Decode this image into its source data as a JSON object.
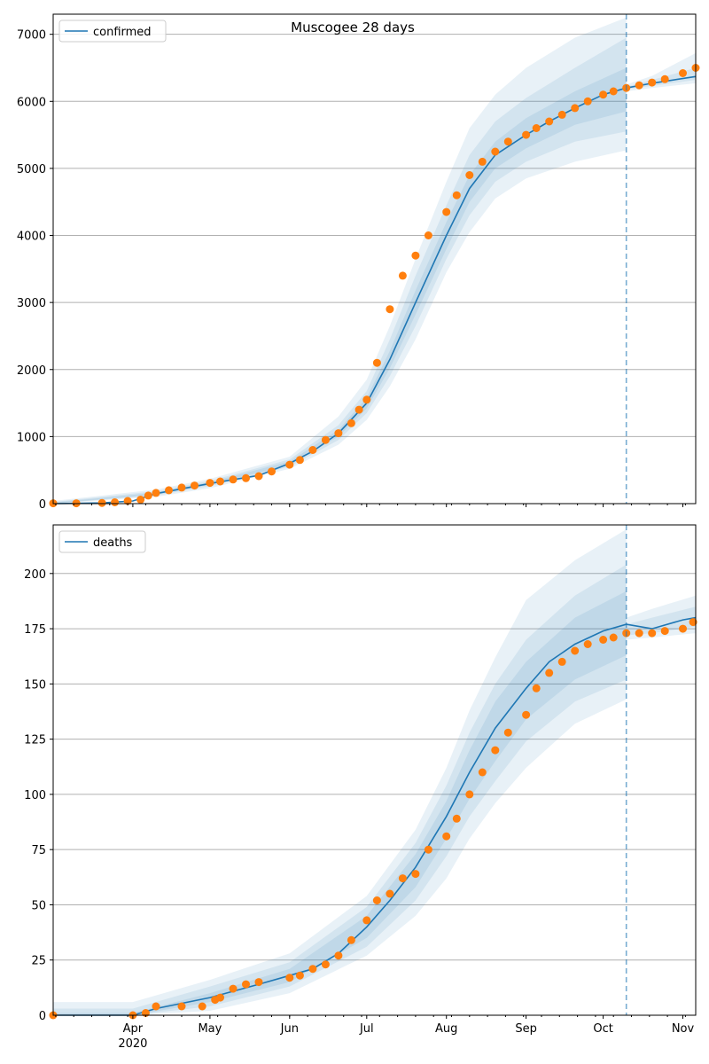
{
  "title": "Muscogee 28 days",
  "colors": {
    "model_line": "#1f77b4",
    "observed_points": "#ff7f0e",
    "band": "#1f77b4",
    "grid": "#b0b0b0",
    "forecast_marker": "#1f77b4"
  },
  "x_axis": {
    "start": "2020-03-01",
    "end": "2020-11-06",
    "month_ticks": [
      {
        "date": "2020-04-01",
        "label": "Apr",
        "sublabel": "2020"
      },
      {
        "date": "2020-05-01",
        "label": "May",
        "sublabel": ""
      },
      {
        "date": "2020-06-01",
        "label": "Jun",
        "sublabel": ""
      },
      {
        "date": "2020-07-01",
        "label": "Jul",
        "sublabel": ""
      },
      {
        "date": "2020-08-01",
        "label": "Aug",
        "sublabel": ""
      },
      {
        "date": "2020-09-01",
        "label": "Sep",
        "sublabel": ""
      },
      {
        "date": "2020-10-01",
        "label": "Oct",
        "sublabel": ""
      },
      {
        "date": "2020-11-01",
        "label": "Nov",
        "sublabel": ""
      }
    ],
    "forecast_start": "2020-10-10"
  },
  "chart_data": [
    {
      "type": "line",
      "title": "Muscogee 28 days",
      "legend": "confirmed",
      "legend_position": "top-left",
      "grid": "horizontal",
      "ylim": [
        0,
        7300
      ],
      "yticks": [
        0,
        1000,
        2000,
        3000,
        4000,
        5000,
        6000,
        7000
      ],
      "model_curve": {
        "x": [
          "2020-03-01",
          "2020-03-20",
          "2020-04-01",
          "2020-04-10",
          "2020-05-01",
          "2020-05-20",
          "2020-06-01",
          "2020-06-10",
          "2020-06-20",
          "2020-07-01",
          "2020-07-10",
          "2020-07-20",
          "2020-08-01",
          "2020-08-10",
          "2020-08-20",
          "2020-09-01",
          "2020-09-10",
          "2020-09-20",
          "2020-10-01",
          "2020-10-10",
          "2020-10-20",
          "2020-11-06"
        ],
        "y": [
          0,
          10,
          40,
          150,
          300,
          420,
          600,
          780,
          1050,
          1500,
          2150,
          3000,
          4000,
          4700,
          5200,
          5500,
          5700,
          5900,
          6100,
          6200,
          6270,
          6370
        ]
      },
      "bands": [
        {
          "x": [
            "2020-03-01",
            "2020-04-10",
            "2020-05-01",
            "2020-06-01",
            "2020-06-20",
            "2020-07-01",
            "2020-07-10",
            "2020-07-20",
            "2020-08-01",
            "2020-08-10",
            "2020-08-20",
            "2020-09-01",
            "2020-09-20",
            "2020-10-10"
          ],
          "lower": [
            0,
            100,
            230,
            520,
            880,
            1250,
            1750,
            2450,
            3450,
            4050,
            4550,
            4850,
            5100,
            5270
          ],
          "upper": [
            40,
            210,
            370,
            700,
            1300,
            1850,
            2650,
            3650,
            4800,
            5600,
            6100,
            6500,
            6950,
            7250
          ]
        },
        {
          "x": [
            "2020-03-01",
            "2020-04-10",
            "2020-05-01",
            "2020-06-01",
            "2020-06-20",
            "2020-07-01",
            "2020-07-10",
            "2020-07-20",
            "2020-08-01",
            "2020-08-10",
            "2020-08-20",
            "2020-09-01",
            "2020-09-20",
            "2020-10-10"
          ],
          "lower": [
            0,
            120,
            260,
            550,
            950,
            1350,
            1900,
            2650,
            3650,
            4300,
            4800,
            5100,
            5400,
            5550
          ],
          "upper": [
            25,
            185,
            340,
            660,
            1170,
            1680,
            2450,
            3400,
            4450,
            5200,
            5700,
            6050,
            6500,
            6950
          ]
        },
        {
          "x": [
            "2020-03-01",
            "2020-04-10",
            "2020-05-01",
            "2020-06-01",
            "2020-06-20",
            "2020-07-01",
            "2020-07-10",
            "2020-07-20",
            "2020-08-01",
            "2020-08-10",
            "2020-08-20",
            "2020-09-01",
            "2020-09-20",
            "2020-10-10"
          ],
          "lower": [
            0,
            135,
            280,
            575,
            1000,
            1420,
            2020,
            2820,
            3800,
            4500,
            5000,
            5300,
            5650,
            5850
          ],
          "upper": [
            15,
            165,
            320,
            630,
            1100,
            1580,
            2280,
            3180,
            4200,
            4900,
            5400,
            5750,
            6150,
            6500
          ]
        },
        {
          "x": [
            "2020-10-10",
            "2020-10-20",
            "2020-11-06"
          ],
          "lower": [
            6150,
            6200,
            6270
          ],
          "upper": [
            6250,
            6380,
            6720
          ]
        },
        {
          "x": [
            "2020-10-10",
            "2020-10-20",
            "2020-11-06"
          ],
          "lower": [
            6180,
            6230,
            6320
          ],
          "upper": [
            6220,
            6320,
            6500
          ]
        }
      ],
      "observed": {
        "x": [
          "2020-03-01",
          "2020-03-10",
          "2020-03-20",
          "2020-03-25",
          "2020-03-30",
          "2020-04-04",
          "2020-04-07",
          "2020-04-10",
          "2020-04-15",
          "2020-04-20",
          "2020-04-25",
          "2020-05-01",
          "2020-05-05",
          "2020-05-10",
          "2020-05-15",
          "2020-05-20",
          "2020-05-25",
          "2020-06-01",
          "2020-06-05",
          "2020-06-10",
          "2020-06-15",
          "2020-06-20",
          "2020-06-25",
          "2020-06-28",
          "2020-07-01",
          "2020-07-05",
          "2020-07-10",
          "2020-07-15",
          "2020-07-20",
          "2020-07-25",
          "2020-08-01",
          "2020-08-05",
          "2020-08-10",
          "2020-08-15",
          "2020-08-20",
          "2020-08-25",
          "2020-09-01",
          "2020-09-05",
          "2020-09-10",
          "2020-09-15",
          "2020-09-20",
          "2020-09-25",
          "2020-10-01",
          "2020-10-05",
          "2020-10-10",
          "2020-10-15",
          "2020-10-20",
          "2020-10-25",
          "2020-11-01",
          "2020-11-06"
        ],
        "y": [
          5,
          5,
          10,
          20,
          40,
          60,
          120,
          160,
          200,
          240,
          270,
          310,
          330,
          360,
          380,
          410,
          480,
          580,
          650,
          800,
          950,
          1050,
          1200,
          1400,
          1550,
          2100,
          2900,
          3400,
          3700,
          4000,
          4350,
          4600,
          4900,
          5100,
          5250,
          5400,
          5500,
          5600,
          5700,
          5800,
          5900,
          6000,
          6100,
          6150,
          6200,
          6240,
          6280,
          6330,
          6420,
          6500
        ]
      }
    },
    {
      "type": "line",
      "legend": "deaths",
      "legend_position": "top-left",
      "grid": "horizontal",
      "ylim": [
        0,
        222
      ],
      "yticks": [
        0,
        25,
        50,
        75,
        100,
        125,
        150,
        175,
        200
      ],
      "model_curve": {
        "x": [
          "2020-03-01",
          "2020-04-01",
          "2020-04-10",
          "2020-05-01",
          "2020-05-20",
          "2020-06-01",
          "2020-06-10",
          "2020-06-20",
          "2020-07-01",
          "2020-07-10",
          "2020-07-20",
          "2020-08-01",
          "2020-08-10",
          "2020-08-20",
          "2020-09-01",
          "2020-09-10",
          "2020-09-20",
          "2020-10-01",
          "2020-10-10",
          "2020-10-20",
          "2020-11-01",
          "2020-11-06"
        ],
        "y": [
          0,
          0,
          3,
          8,
          14,
          18,
          21,
          28,
          40,
          52,
          67,
          90,
          110,
          130,
          148,
          160,
          168,
          174,
          177,
          175,
          179,
          180
        ]
      },
      "bands": [
        {
          "x": [
            "2020-03-01",
            "2020-04-01",
            "2020-05-01",
            "2020-06-01",
            "2020-07-01",
            "2020-07-20",
            "2020-08-01",
            "2020-08-10",
            "2020-08-20",
            "2020-09-01",
            "2020-09-20",
            "2020-10-10"
          ],
          "lower": [
            0,
            0,
            2,
            10,
            27,
            45,
            62,
            80,
            96,
            112,
            132,
            143
          ],
          "upper": [
            6,
            6,
            16,
            28,
            54,
            84,
            112,
            138,
            162,
            188,
            206,
            220
          ]
        },
        {
          "x": [
            "2020-03-01",
            "2020-04-01",
            "2020-05-01",
            "2020-06-01",
            "2020-07-01",
            "2020-07-20",
            "2020-08-01",
            "2020-08-10",
            "2020-08-20",
            "2020-09-01",
            "2020-09-20",
            "2020-10-10"
          ],
          "lower": [
            0,
            0,
            4,
            13,
            31,
            52,
            72,
            90,
            106,
            124,
            142,
            152
          ],
          "upper": [
            3,
            3,
            13,
            24,
            49,
            78,
            104,
            128,
            150,
            170,
            190,
            204
          ]
        },
        {
          "x": [
            "2020-03-01",
            "2020-04-01",
            "2020-05-01",
            "2020-06-01",
            "2020-07-01",
            "2020-07-20",
            "2020-08-01",
            "2020-08-10",
            "2020-08-20",
            "2020-09-01",
            "2020-09-20",
            "2020-10-10"
          ],
          "lower": [
            0,
            0,
            6,
            15,
            35,
            58,
            80,
            98,
            115,
            134,
            152,
            163
          ],
          "upper": [
            1,
            1,
            10,
            21,
            45,
            73,
            97,
            120,
            142,
            160,
            180,
            192
          ]
        },
        {
          "x": [
            "2020-10-10",
            "2020-10-20",
            "2020-11-06"
          ],
          "lower": [
            170,
            171,
            173
          ],
          "upper": [
            180,
            184,
            190
          ]
        },
        {
          "x": [
            "2020-10-10",
            "2020-10-20",
            "2020-11-06"
          ],
          "lower": [
            172,
            173,
            176
          ],
          "upper": [
            177,
            180,
            185
          ]
        }
      ],
      "observed": {
        "x": [
          "2020-03-01",
          "2020-04-01",
          "2020-04-06",
          "2020-04-10",
          "2020-04-20",
          "2020-04-28",
          "2020-05-03",
          "2020-05-05",
          "2020-05-10",
          "2020-05-15",
          "2020-05-20",
          "2020-06-01",
          "2020-06-05",
          "2020-06-10",
          "2020-06-15",
          "2020-06-20",
          "2020-06-25",
          "2020-07-01",
          "2020-07-05",
          "2020-07-10",
          "2020-07-15",
          "2020-07-20",
          "2020-07-25",
          "2020-08-01",
          "2020-08-05",
          "2020-08-10",
          "2020-08-15",
          "2020-08-20",
          "2020-08-25",
          "2020-09-01",
          "2020-09-05",
          "2020-09-10",
          "2020-09-15",
          "2020-09-20",
          "2020-09-25",
          "2020-10-01",
          "2020-10-05",
          "2020-10-10",
          "2020-10-15",
          "2020-10-20",
          "2020-10-25",
          "2020-11-01",
          "2020-11-05"
        ],
        "y": [
          0,
          0,
          1,
          4,
          4,
          4,
          7,
          8,
          12,
          14,
          15,
          17,
          18,
          21,
          23,
          27,
          34,
          43,
          52,
          55,
          62,
          64,
          75,
          81,
          89,
          100,
          110,
          120,
          128,
          136,
          148,
          155,
          160,
          165,
          168,
          170,
          171,
          173,
          173,
          173,
          174,
          175,
          178
        ]
      }
    }
  ]
}
